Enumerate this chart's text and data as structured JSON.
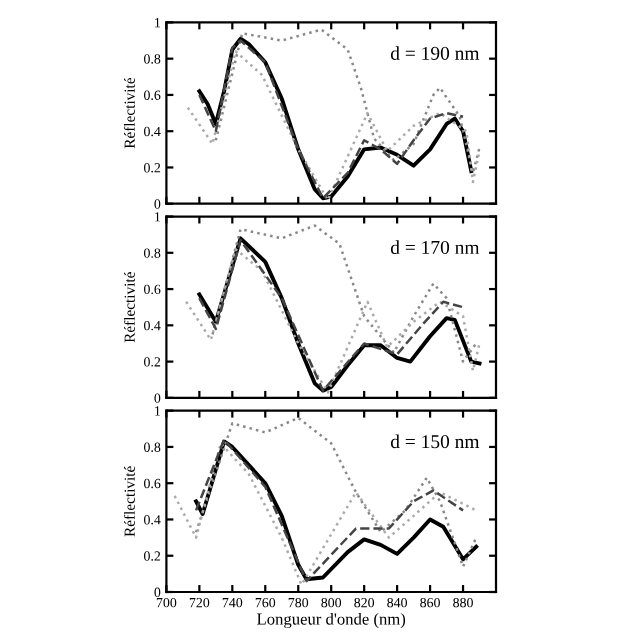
{
  "chart_data": [
    {
      "type": "line",
      "ylabel": "Réflectivité",
      "annotations": [
        "d = 190 nm"
      ],
      "xlim": [
        700,
        900
      ],
      "ylim": [
        0,
        1
      ],
      "xticks": [
        700,
        720,
        740,
        760,
        780,
        800,
        820,
        840,
        860,
        880
      ],
      "yticks": [
        0,
        0.2,
        0.4,
        0.6,
        0.8,
        1
      ],
      "tick_labels": "y",
      "grid": false,
      "legend": false,
      "series": [
        {
          "color": "#000000",
          "line_style": "solid",
          "x": [
            720,
            725,
            730,
            735,
            740,
            745,
            750,
            760,
            770,
            780,
            790,
            795,
            800,
            810,
            820,
            830,
            840,
            850,
            860,
            870,
            875,
            880,
            885
          ],
          "values": [
            0.62,
            0.55,
            0.44,
            0.62,
            0.85,
            0.91,
            0.88,
            0.78,
            0.58,
            0.3,
            0.08,
            0.03,
            0.04,
            0.15,
            0.3,
            0.31,
            0.27,
            0.21,
            0.3,
            0.44,
            0.47,
            0.4,
            0.18
          ]
        },
        {
          "color": "#888888",
          "line_style": "dotted",
          "x": [
            730,
            746,
            770,
            794,
            810,
            818,
            826,
            838,
            850,
            862,
            866,
            878,
            886,
            890
          ],
          "values": [
            0.35,
            0.94,
            0.9,
            0.96,
            0.85,
            0.64,
            0.36,
            0.24,
            0.33,
            0.6,
            0.64,
            0.48,
            0.17,
            0.31
          ]
        },
        {
          "color": "#aaaaaa",
          "line_style": "dotted",
          "x": [
            713,
            728,
            742,
            758,
            780,
            798,
            822,
            834,
            850,
            866,
            882,
            886,
            890
          ],
          "values": [
            0.53,
            0.33,
            0.84,
            0.71,
            0.3,
            0.02,
            0.5,
            0.29,
            0.43,
            0.5,
            0.4,
            0.12,
            0.29
          ]
        },
        {
          "color": "#444444",
          "line_style": "dashed",
          "x": [
            720,
            730,
            740,
            745,
            760,
            780,
            795,
            810,
            820,
            830,
            840,
            850,
            860,
            870,
            880
          ],
          "values": [
            0.6,
            0.4,
            0.86,
            0.9,
            0.78,
            0.3,
            0.03,
            0.17,
            0.35,
            0.3,
            0.22,
            0.35,
            0.47,
            0.5,
            0.48
          ]
        }
      ]
    },
    {
      "type": "line",
      "ylabel": "Réflectivité",
      "annotations": [
        "d = 170 nm"
      ],
      "xlim": [
        700,
        900
      ],
      "ylim": [
        0,
        1
      ],
      "xticks": [
        700,
        720,
        740,
        760,
        780,
        800,
        820,
        840,
        860,
        880
      ],
      "yticks": [
        0,
        0.2,
        0.4,
        0.6,
        0.8,
        1
      ],
      "tick_labels": "y",
      "grid": false,
      "legend": false,
      "series": [
        {
          "color": "#000000",
          "line_style": "solid",
          "x": [
            720,
            730,
            745,
            760,
            770,
            780,
            790,
            795,
            800,
            810,
            820,
            830,
            840,
            848,
            860,
            870,
            875,
            885,
            890
          ],
          "values": [
            0.57,
            0.42,
            0.88,
            0.75,
            0.55,
            0.3,
            0.08,
            0.04,
            0.06,
            0.18,
            0.29,
            0.29,
            0.22,
            0.2,
            0.34,
            0.44,
            0.43,
            0.2,
            0.19
          ]
        },
        {
          "color": "#888888",
          "line_style": "dotted",
          "x": [
            728,
            745,
            770,
            790,
            805,
            820,
            838,
            850,
            862,
            870,
            880,
            888
          ],
          "values": [
            0.35,
            0.93,
            0.88,
            0.95,
            0.85,
            0.45,
            0.25,
            0.45,
            0.63,
            0.55,
            0.2,
            0.3
          ]
        },
        {
          "color": "#aaaaaa",
          "line_style": "dotted",
          "x": [
            712,
            727,
            742,
            758,
            780,
            798,
            822,
            834,
            850,
            866,
            880,
            886,
            890
          ],
          "values": [
            0.53,
            0.32,
            0.82,
            0.7,
            0.3,
            0.03,
            0.53,
            0.28,
            0.42,
            0.53,
            0.45,
            0.15,
            0.3
          ]
        },
        {
          "color": "#444444",
          "line_style": "dashed",
          "x": [
            720,
            730,
            745,
            770,
            795,
            820,
            840,
            855,
            868,
            880
          ],
          "values": [
            0.55,
            0.38,
            0.87,
            0.55,
            0.04,
            0.3,
            0.24,
            0.4,
            0.53,
            0.5
          ]
        }
      ]
    },
    {
      "type": "line",
      "xlabel": "Longueur d'onde (nm)",
      "ylabel": "Réflectivité",
      "annotations": [
        "d = 150 nm"
      ],
      "xlim": [
        700,
        900
      ],
      "ylim": [
        0,
        1
      ],
      "xticks": [
        700,
        720,
        740,
        760,
        780,
        800,
        820,
        840,
        860,
        880
      ],
      "yticks": [
        0,
        0.2,
        0.4,
        0.6,
        0.8,
        1
      ],
      "grid": false,
      "legend": false,
      "series": [
        {
          "color": "#000000",
          "line_style": "solid",
          "x": [
            718,
            722,
            735,
            740,
            760,
            770,
            780,
            785,
            795,
            810,
            820,
            830,
            840,
            850,
            860,
            868,
            880,
            888
          ],
          "values": [
            0.5,
            0.43,
            0.83,
            0.8,
            0.6,
            0.42,
            0.15,
            0.07,
            0.08,
            0.22,
            0.29,
            0.26,
            0.21,
            0.3,
            0.4,
            0.36,
            0.18,
            0.25
          ]
        },
        {
          "color": "#888888",
          "line_style": "dotted",
          "x": [
            718,
            740,
            760,
            780,
            800,
            815,
            830,
            845,
            858,
            866,
            880,
            888
          ],
          "values": [
            0.33,
            0.93,
            0.88,
            0.96,
            0.82,
            0.55,
            0.33,
            0.45,
            0.63,
            0.5,
            0.14,
            0.3
          ]
        },
        {
          "color": "#aaaaaa",
          "line_style": "dotted",
          "x": [
            705,
            718,
            733,
            750,
            770,
            782,
            815,
            835,
            850,
            866,
            888
          ],
          "values": [
            0.53,
            0.3,
            0.82,
            0.65,
            0.3,
            0.04,
            0.55,
            0.3,
            0.42,
            0.55,
            0.45
          ]
        },
        {
          "color": "#444444",
          "line_style": "dashed",
          "x": [
            718,
            735,
            760,
            785,
            815,
            835,
            850,
            862,
            880
          ],
          "values": [
            0.45,
            0.84,
            0.58,
            0.06,
            0.35,
            0.35,
            0.5,
            0.56,
            0.45
          ]
        }
      ]
    }
  ]
}
